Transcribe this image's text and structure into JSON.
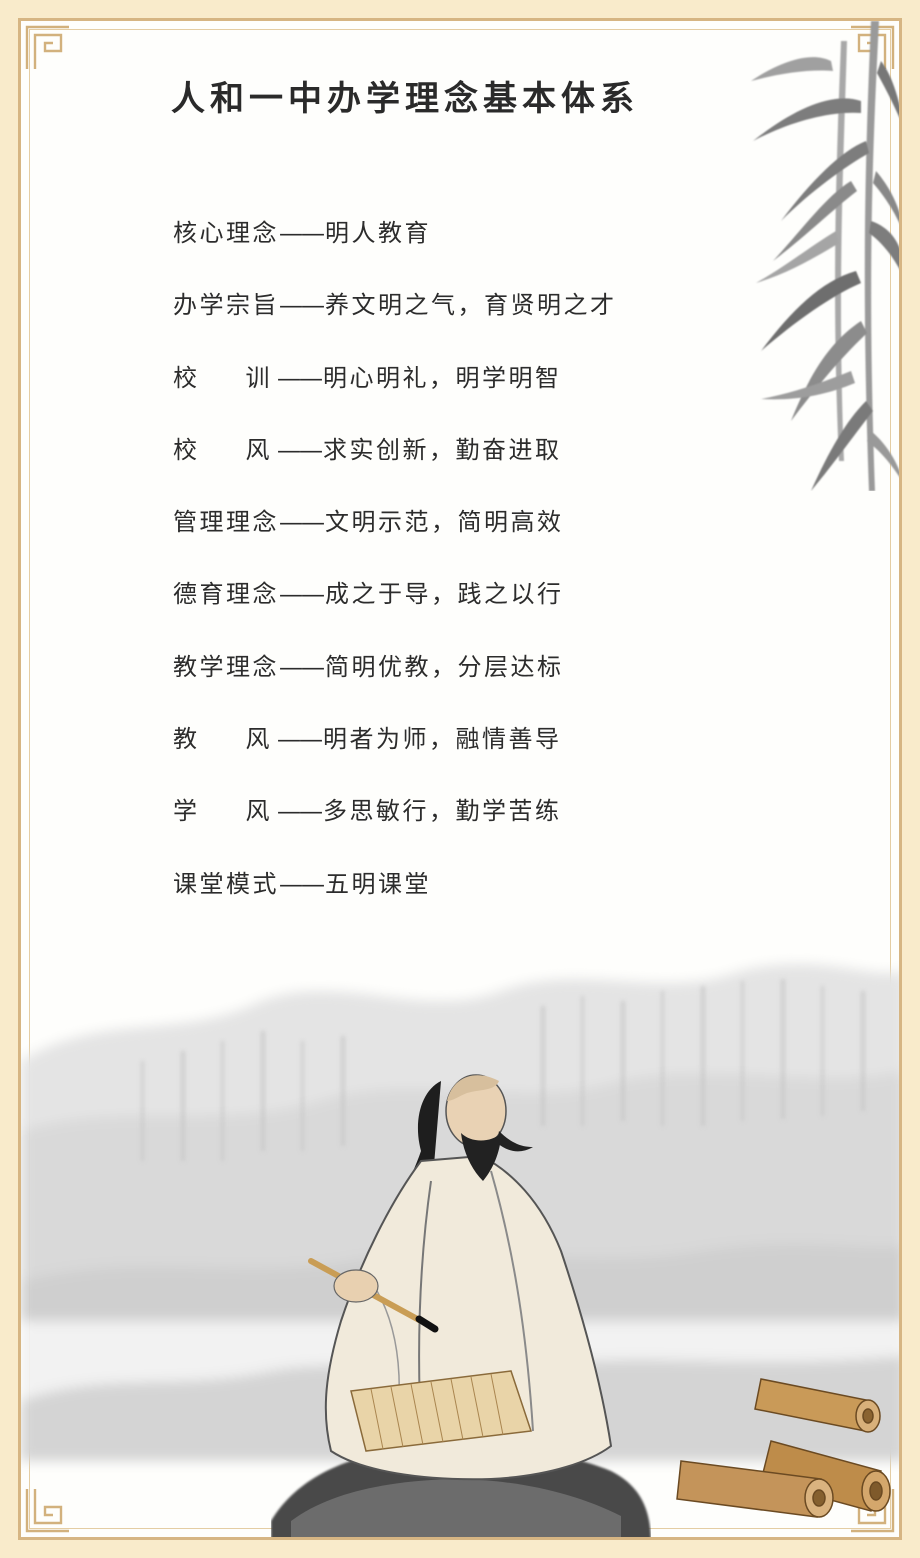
{
  "title": "人和一中办学理念基本体系",
  "principles": [
    {
      "label": "核心理念",
      "separator": "——",
      "content": "明人教育"
    },
    {
      "label_a": "办学宗旨",
      "separator": "——",
      "content": "养文明之气，育贤明之才"
    },
    {
      "label_a": "校",
      "label_b": "训",
      "separator": "——",
      "content": "明心明礼，明学明智"
    },
    {
      "label_a": "校",
      "label_b": "风",
      "separator": "——",
      "content": "求实创新，勤奋进取"
    },
    {
      "label": "管理理念",
      "separator": "——",
      "content": "文明示范，简明高效"
    },
    {
      "label": "德育理念",
      "separator": "——",
      "content": "成之于导，践之以行"
    },
    {
      "label": "教学理念",
      "separator": "——",
      "content": "简明优教，分层达标"
    },
    {
      "label_a": "教",
      "label_b": "风",
      "separator": "——",
      "content": "明者为师，融情善导"
    },
    {
      "label_a": "学",
      "label_b": "风",
      "separator": "——",
      "content": "多思敏行，勤学苦练"
    },
    {
      "label": "课堂模式",
      "separator": "——",
      "content": "五明课堂"
    }
  ],
  "colors": {
    "outer_background": "#f9ebcb",
    "frame_border": "#d6b583",
    "paper": "#fefefc",
    "text": "#2c2c2c",
    "ink_wash": "#b9b9b9"
  },
  "decorations": [
    "bamboo-painting",
    "mountain-mist-painting",
    "scholar-figure",
    "bamboo-scrolls",
    "fret-corner-ornament"
  ]
}
